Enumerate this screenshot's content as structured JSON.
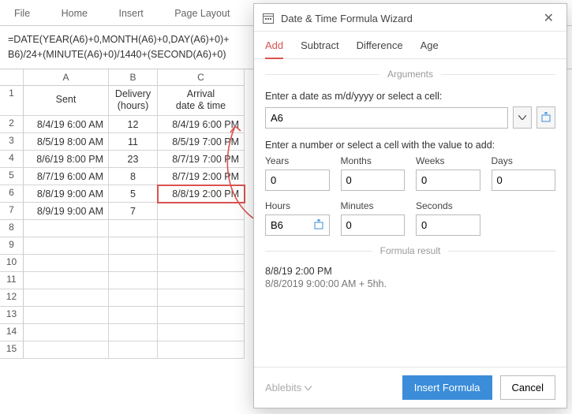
{
  "ribbon": {
    "items": [
      "File",
      "Home",
      "Insert",
      "Page Layout"
    ]
  },
  "formula_bar": {
    "line1": "=DATE(YEAR(A6)+0,MONTH(A6)+0,DAY(A6)+0)+",
    "line2": "B6)/24+(MINUTE(A6)+0)/1440+(SECOND(A6)+0)"
  },
  "sheet": {
    "columns": [
      "A",
      "B",
      "C"
    ],
    "headers": {
      "A": "Sent",
      "B1": "Delivery",
      "B2": "(hours)",
      "C1": "Arrival",
      "C2": "date & time"
    },
    "rows": [
      {
        "n": 2,
        "A": "8/4/19 6:00 AM",
        "B": "12",
        "C": "8/4/19 6:00 PM"
      },
      {
        "n": 3,
        "A": "8/5/19 8:00 AM",
        "B": "11",
        "C": "8/5/19 7:00 PM"
      },
      {
        "n": 4,
        "A": "8/6/19 8:00 PM",
        "B": "23",
        "C": "8/7/19 7:00 PM"
      },
      {
        "n": 5,
        "A": "8/7/19 6:00 AM",
        "B": "8",
        "C": "8/7/19 2:00 PM"
      },
      {
        "n": 6,
        "A": "8/8/19 9:00 AM",
        "B": "5",
        "C": "8/8/19 2:00 PM"
      },
      {
        "n": 7,
        "A": "8/9/19 9:00 AM",
        "B": "7",
        "C": ""
      }
    ],
    "blank_rows": [
      8,
      9,
      10,
      11,
      12,
      13,
      14,
      15
    ],
    "selected": {
      "row": 6,
      "col": "C"
    }
  },
  "dialog": {
    "title": "Date & Time Formula Wizard",
    "tabs": [
      "Add",
      "Subtract",
      "Difference",
      "Age"
    ],
    "active_tab": 0,
    "arguments_label": "Arguments",
    "date_prompt": "Enter a date as m/d/yyyy or select a cell:",
    "date_value": "A6",
    "value_prompt": "Enter a number or select a cell with the value to add:",
    "fields": {
      "years": {
        "label": "Years",
        "value": "0"
      },
      "months": {
        "label": "Months",
        "value": "0"
      },
      "weeks": {
        "label": "Weeks",
        "value": "0"
      },
      "days": {
        "label": "Days",
        "value": "0"
      },
      "hours": {
        "label": "Hours",
        "value": "B6"
      },
      "minutes": {
        "label": "Minutes",
        "value": "0"
      },
      "seconds": {
        "label": "Seconds",
        "value": "0"
      }
    },
    "result_label": "Formula result",
    "result_main": "8/8/19 2:00 PM",
    "result_sub": "8/8/2019 9:00:00 AM + 5hh.",
    "brand": "Ablebits",
    "insert_btn": "Insert Formula",
    "cancel_btn": "Cancel"
  },
  "colors": {
    "accent_red": "#d9534f",
    "primary_blue": "#3b8dd9",
    "border_gray": "#d4d4d4"
  }
}
